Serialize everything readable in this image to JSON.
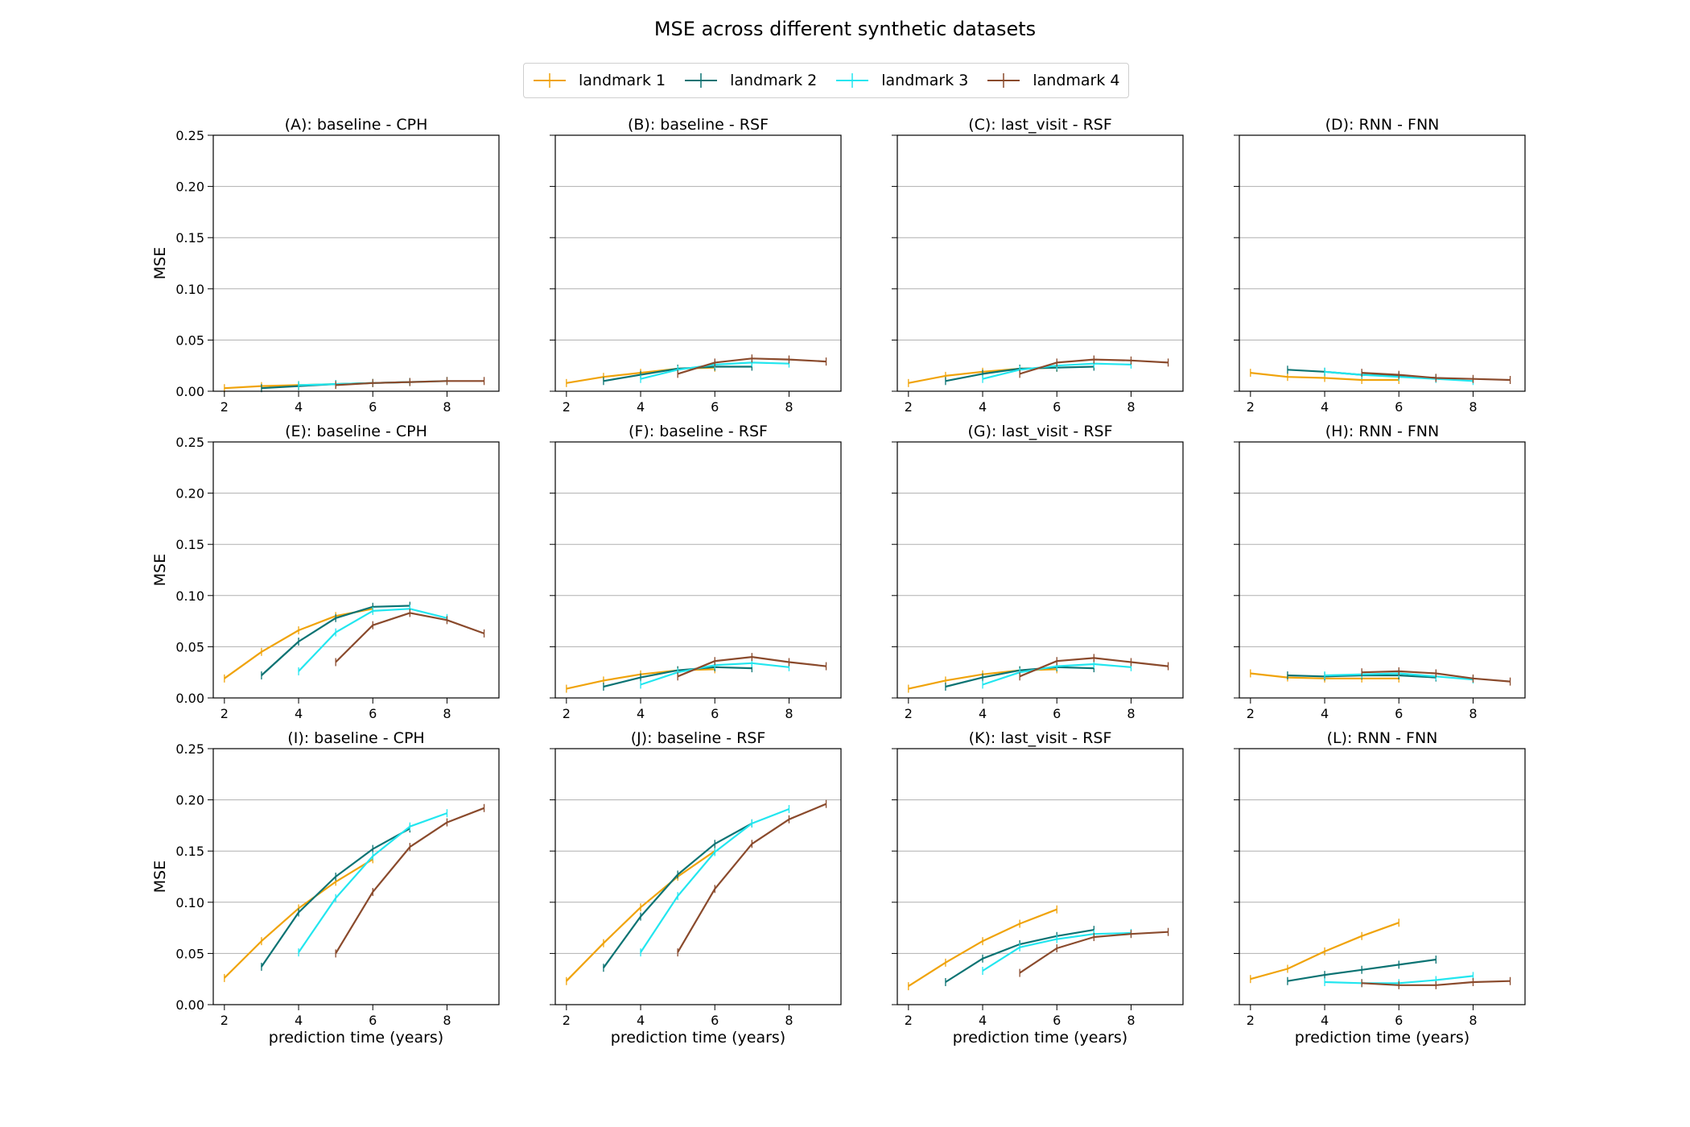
{
  "figure": {
    "title": "MSE across different synthetic datasets",
    "legend": [
      "landmark 1",
      "landmark 2",
      "landmark 3",
      "landmark 4"
    ],
    "colors": [
      "#f0a30a",
      "#0b7373",
      "#22e6ef",
      "#8a4a2c"
    ]
  },
  "chart_data": [
    {
      "type": "line",
      "title": "(A): baseline - CPH",
      "xlabel": "",
      "ylabel": "MSE",
      "xlim": [
        1.7,
        9.4
      ],
      "ylim": [
        0,
        0.25
      ],
      "xticks": [
        2,
        4,
        6,
        8
      ],
      "yticks": [
        0.0,
        0.05,
        0.1,
        0.15,
        0.2,
        0.25
      ],
      "grid": "y",
      "series": [
        {
          "name": "landmark 1",
          "x": [
            2,
            3,
            4,
            5,
            6
          ],
          "values": [
            0.003,
            0.005,
            0.006,
            0.007,
            0.008
          ]
        },
        {
          "name": "landmark 2",
          "x": [
            3,
            4,
            5,
            6,
            7
          ],
          "values": [
            0.003,
            0.005,
            0.007,
            0.008,
            0.009
          ]
        },
        {
          "name": "landmark 3",
          "x": [
            4,
            5,
            6,
            7,
            8
          ],
          "values": [
            0.006,
            0.007,
            0.008,
            0.009,
            0.01
          ]
        },
        {
          "name": "landmark 4",
          "x": [
            5,
            6,
            7,
            8,
            9
          ],
          "values": [
            0.006,
            0.008,
            0.009,
            0.01,
            0.01
          ]
        }
      ]
    },
    {
      "type": "line",
      "title": "(B): baseline - RSF",
      "xlabel": "",
      "ylabel": "",
      "xlim": [
        1.7,
        9.4
      ],
      "ylim": [
        0,
        0.25
      ],
      "xticks": [
        2,
        4,
        6,
        8
      ],
      "yticks": [
        0.0,
        0.05,
        0.1,
        0.15,
        0.2,
        0.25
      ],
      "grid": "y",
      "series": [
        {
          "name": "landmark 1",
          "x": [
            2,
            3,
            4,
            5,
            6
          ],
          "values": [
            0.008,
            0.014,
            0.018,
            0.022,
            0.023
          ]
        },
        {
          "name": "landmark 2",
          "x": [
            3,
            4,
            5,
            6,
            7
          ],
          "values": [
            0.01,
            0.016,
            0.022,
            0.024,
            0.024
          ]
        },
        {
          "name": "landmark 3",
          "x": [
            4,
            5,
            6,
            7,
            8
          ],
          "values": [
            0.012,
            0.021,
            0.026,
            0.028,
            0.027
          ]
        },
        {
          "name": "landmark 4",
          "x": [
            5,
            6,
            7,
            8,
            9
          ],
          "values": [
            0.017,
            0.028,
            0.032,
            0.031,
            0.029
          ]
        }
      ]
    },
    {
      "type": "line",
      "title": "(C): last_visit - RSF",
      "xlabel": "",
      "ylabel": "",
      "xlim": [
        1.7,
        9.4
      ],
      "ylim": [
        0,
        0.25
      ],
      "xticks": [
        2,
        4,
        6,
        8
      ],
      "yticks": [
        0.0,
        0.05,
        0.1,
        0.15,
        0.2,
        0.25
      ],
      "grid": "y",
      "series": [
        {
          "name": "landmark 1",
          "x": [
            2,
            3,
            4,
            5,
            6
          ],
          "values": [
            0.008,
            0.015,
            0.019,
            0.022,
            0.023
          ]
        },
        {
          "name": "landmark 2",
          "x": [
            3,
            4,
            5,
            6,
            7
          ],
          "values": [
            0.01,
            0.017,
            0.022,
            0.023,
            0.024
          ]
        },
        {
          "name": "landmark 3",
          "x": [
            4,
            5,
            6,
            7,
            8
          ],
          "values": [
            0.012,
            0.021,
            0.025,
            0.027,
            0.026
          ]
        },
        {
          "name": "landmark 4",
          "x": [
            5,
            6,
            7,
            8,
            9
          ],
          "values": [
            0.017,
            0.028,
            0.031,
            0.03,
            0.028
          ]
        }
      ]
    },
    {
      "type": "line",
      "title": "(D): RNN - FNN",
      "xlabel": "",
      "ylabel": "",
      "xlim": [
        1.7,
        9.4
      ],
      "ylim": [
        0,
        0.25
      ],
      "xticks": [
        2,
        4,
        6,
        8
      ],
      "yticks": [
        0.0,
        0.05,
        0.1,
        0.15,
        0.2,
        0.25
      ],
      "grid": "y",
      "series": [
        {
          "name": "landmark 1",
          "x": [
            2,
            3,
            4,
            5,
            6
          ],
          "values": [
            0.018,
            0.014,
            0.013,
            0.011,
            0.011
          ]
        },
        {
          "name": "landmark 2",
          "x": [
            3,
            4,
            5,
            6,
            7
          ],
          "values": [
            0.021,
            0.019,
            0.016,
            0.015,
            0.013
          ]
        },
        {
          "name": "landmark 3",
          "x": [
            4,
            5,
            6,
            7,
            8
          ],
          "values": [
            0.019,
            0.016,
            0.014,
            0.012,
            0.01
          ]
        },
        {
          "name": "landmark 4",
          "x": [
            5,
            6,
            7,
            8,
            9
          ],
          "values": [
            0.018,
            0.016,
            0.013,
            0.012,
            0.011
          ]
        }
      ]
    },
    {
      "type": "line",
      "title": "(E): baseline - CPH",
      "xlabel": "",
      "ylabel": "MSE",
      "xlim": [
        1.7,
        9.4
      ],
      "ylim": [
        0,
        0.25
      ],
      "xticks": [
        2,
        4,
        6,
        8
      ],
      "yticks": [
        0.0,
        0.05,
        0.1,
        0.15,
        0.2,
        0.25
      ],
      "grid": "y",
      "series": [
        {
          "name": "landmark 1",
          "x": [
            2,
            3,
            4,
            5,
            6
          ],
          "values": [
            0.019,
            0.045,
            0.066,
            0.08,
            0.087
          ]
        },
        {
          "name": "landmark 2",
          "x": [
            3,
            4,
            5,
            6,
            7
          ],
          "values": [
            0.022,
            0.055,
            0.078,
            0.089,
            0.09
          ]
        },
        {
          "name": "landmark 3",
          "x": [
            4,
            5,
            6,
            7,
            8
          ],
          "values": [
            0.026,
            0.064,
            0.085,
            0.087,
            0.078
          ]
        },
        {
          "name": "landmark 4",
          "x": [
            5,
            6,
            7,
            8,
            9
          ],
          "values": [
            0.035,
            0.071,
            0.083,
            0.076,
            0.063
          ]
        }
      ]
    },
    {
      "type": "line",
      "title": "(F): baseline - RSF",
      "xlabel": "",
      "ylabel": "",
      "xlim": [
        1.7,
        9.4
      ],
      "ylim": [
        0,
        0.25
      ],
      "xticks": [
        2,
        4,
        6,
        8
      ],
      "yticks": [
        0.0,
        0.05,
        0.1,
        0.15,
        0.2,
        0.25
      ],
      "grid": "y",
      "series": [
        {
          "name": "landmark 1",
          "x": [
            2,
            3,
            4,
            5,
            6
          ],
          "values": [
            0.009,
            0.017,
            0.023,
            0.027,
            0.028
          ]
        },
        {
          "name": "landmark 2",
          "x": [
            3,
            4,
            5,
            6,
            7
          ],
          "values": [
            0.011,
            0.02,
            0.027,
            0.03,
            0.029
          ]
        },
        {
          "name": "landmark 3",
          "x": [
            4,
            5,
            6,
            7,
            8
          ],
          "values": [
            0.013,
            0.025,
            0.032,
            0.034,
            0.03
          ]
        },
        {
          "name": "landmark 4",
          "x": [
            5,
            6,
            7,
            8,
            9
          ],
          "values": [
            0.021,
            0.036,
            0.04,
            0.035,
            0.031
          ]
        }
      ]
    },
    {
      "type": "line",
      "title": "(G): last_visit - RSF",
      "xlabel": "",
      "ylabel": "",
      "xlim": [
        1.7,
        9.4
      ],
      "ylim": [
        0,
        0.25
      ],
      "xticks": [
        2,
        4,
        6,
        8
      ],
      "yticks": [
        0.0,
        0.05,
        0.1,
        0.15,
        0.2,
        0.25
      ],
      "grid": "y",
      "series": [
        {
          "name": "landmark 1",
          "x": [
            2,
            3,
            4,
            5,
            6
          ],
          "values": [
            0.009,
            0.017,
            0.023,
            0.027,
            0.028
          ]
        },
        {
          "name": "landmark 2",
          "x": [
            3,
            4,
            5,
            6,
            7
          ],
          "values": [
            0.011,
            0.02,
            0.027,
            0.03,
            0.029
          ]
        },
        {
          "name": "landmark 3",
          "x": [
            4,
            5,
            6,
            7,
            8
          ],
          "values": [
            0.013,
            0.025,
            0.031,
            0.033,
            0.03
          ]
        },
        {
          "name": "landmark 4",
          "x": [
            5,
            6,
            7,
            8,
            9
          ],
          "values": [
            0.021,
            0.036,
            0.039,
            0.035,
            0.031
          ]
        }
      ]
    },
    {
      "type": "line",
      "title": "(H): RNN - FNN",
      "xlabel": "",
      "ylabel": "",
      "xlim": [
        1.7,
        9.4
      ],
      "ylim": [
        0,
        0.25
      ],
      "xticks": [
        2,
        4,
        6,
        8
      ],
      "yticks": [
        0.0,
        0.05,
        0.1,
        0.15,
        0.2,
        0.25
      ],
      "grid": "y",
      "series": [
        {
          "name": "landmark 1",
          "x": [
            2,
            3,
            4,
            5,
            6
          ],
          "values": [
            0.024,
            0.02,
            0.019,
            0.019,
            0.019
          ]
        },
        {
          "name": "landmark 2",
          "x": [
            3,
            4,
            5,
            6,
            7
          ],
          "values": [
            0.022,
            0.021,
            0.022,
            0.022,
            0.02
          ]
        },
        {
          "name": "landmark 3",
          "x": [
            4,
            5,
            6,
            7,
            8
          ],
          "values": [
            0.022,
            0.023,
            0.024,
            0.021,
            0.018
          ]
        },
        {
          "name": "landmark 4",
          "x": [
            5,
            6,
            7,
            8,
            9
          ],
          "values": [
            0.025,
            0.026,
            0.024,
            0.019,
            0.016
          ]
        }
      ]
    },
    {
      "type": "line",
      "title": "(I): baseline - CPH",
      "xlabel": "prediction time (years)",
      "ylabel": "MSE",
      "xlim": [
        1.7,
        9.4
      ],
      "ylim": [
        0,
        0.25
      ],
      "xticks": [
        2,
        4,
        6,
        8
      ],
      "yticks": [
        0.0,
        0.05,
        0.1,
        0.15,
        0.2,
        0.25
      ],
      "grid": "y",
      "series": [
        {
          "name": "landmark 1",
          "x": [
            2,
            3,
            4,
            5,
            6
          ],
          "values": [
            0.026,
            0.062,
            0.094,
            0.12,
            0.142
          ]
        },
        {
          "name": "landmark 2",
          "x": [
            3,
            4,
            5,
            6,
            7
          ],
          "values": [
            0.037,
            0.09,
            0.125,
            0.152,
            0.172
          ]
        },
        {
          "name": "landmark 3",
          "x": [
            4,
            5,
            6,
            7,
            8
          ],
          "values": [
            0.051,
            0.104,
            0.145,
            0.174,
            0.187
          ]
        },
        {
          "name": "landmark 4",
          "x": [
            5,
            6,
            7,
            8,
            9
          ],
          "values": [
            0.05,
            0.11,
            0.154,
            0.178,
            0.192
          ]
        }
      ]
    },
    {
      "type": "line",
      "title": "(J): baseline - RSF",
      "xlabel": "prediction time (years)",
      "ylabel": "",
      "xlim": [
        1.7,
        9.4
      ],
      "ylim": [
        0,
        0.25
      ],
      "xticks": [
        2,
        4,
        6,
        8
      ],
      "yticks": [
        0.0,
        0.05,
        0.1,
        0.15,
        0.2,
        0.25
      ],
      "grid": "y",
      "series": [
        {
          "name": "landmark 1",
          "x": [
            2,
            3,
            4,
            5,
            6
          ],
          "values": [
            0.023,
            0.06,
            0.095,
            0.125,
            0.15
          ]
        },
        {
          "name": "landmark 2",
          "x": [
            3,
            4,
            5,
            6,
            7
          ],
          "values": [
            0.036,
            0.086,
            0.127,
            0.157,
            0.177
          ]
        },
        {
          "name": "landmark 3",
          "x": [
            4,
            5,
            6,
            7,
            8
          ],
          "values": [
            0.051,
            0.106,
            0.149,
            0.177,
            0.191
          ]
        },
        {
          "name": "landmark 4",
          "x": [
            5,
            6,
            7,
            8,
            9
          ],
          "values": [
            0.051,
            0.113,
            0.157,
            0.181,
            0.196
          ]
        }
      ]
    },
    {
      "type": "line",
      "title": "(K): last_visit - RSF",
      "xlabel": "prediction time (years)",
      "ylabel": "",
      "xlim": [
        1.7,
        9.4
      ],
      "ylim": [
        0,
        0.25
      ],
      "xticks": [
        2,
        4,
        6,
        8
      ],
      "yticks": [
        0.0,
        0.05,
        0.1,
        0.15,
        0.2,
        0.25
      ],
      "grid": "y",
      "series": [
        {
          "name": "landmark 1",
          "x": [
            2,
            3,
            4,
            5,
            6
          ],
          "values": [
            0.018,
            0.041,
            0.062,
            0.079,
            0.093
          ]
        },
        {
          "name": "landmark 2",
          "x": [
            3,
            4,
            5,
            6,
            7
          ],
          "values": [
            0.022,
            0.045,
            0.059,
            0.067,
            0.073
          ]
        },
        {
          "name": "landmark 3",
          "x": [
            4,
            5,
            6,
            7,
            8
          ],
          "values": [
            0.033,
            0.056,
            0.064,
            0.069,
            0.07
          ]
        },
        {
          "name": "landmark 4",
          "x": [
            5,
            6,
            7,
            8,
            9
          ],
          "values": [
            0.031,
            0.055,
            0.066,
            0.069,
            0.071
          ]
        }
      ]
    },
    {
      "type": "line",
      "title": "(L): RNN - FNN",
      "xlabel": "prediction time (years)",
      "ylabel": "",
      "xlim": [
        1.7,
        9.4
      ],
      "ylim": [
        0,
        0.25
      ],
      "xticks": [
        2,
        4,
        6,
        8
      ],
      "yticks": [
        0.0,
        0.05,
        0.1,
        0.15,
        0.2,
        0.25
      ],
      "grid": "y",
      "series": [
        {
          "name": "landmark 1",
          "x": [
            2,
            3,
            4,
            5,
            6
          ],
          "values": [
            0.025,
            0.035,
            0.052,
            0.067,
            0.08
          ]
        },
        {
          "name": "landmark 2",
          "x": [
            3,
            4,
            5,
            6,
            7
          ],
          "values": [
            0.023,
            0.029,
            0.034,
            0.039,
            0.044
          ]
        },
        {
          "name": "landmark 3",
          "x": [
            4,
            5,
            6,
            7,
            8
          ],
          "values": [
            0.022,
            0.021,
            0.021,
            0.024,
            0.028
          ]
        },
        {
          "name": "landmark 4",
          "x": [
            5,
            6,
            7,
            8,
            9
          ],
          "values": [
            0.021,
            0.019,
            0.019,
            0.022,
            0.023
          ]
        }
      ]
    }
  ]
}
